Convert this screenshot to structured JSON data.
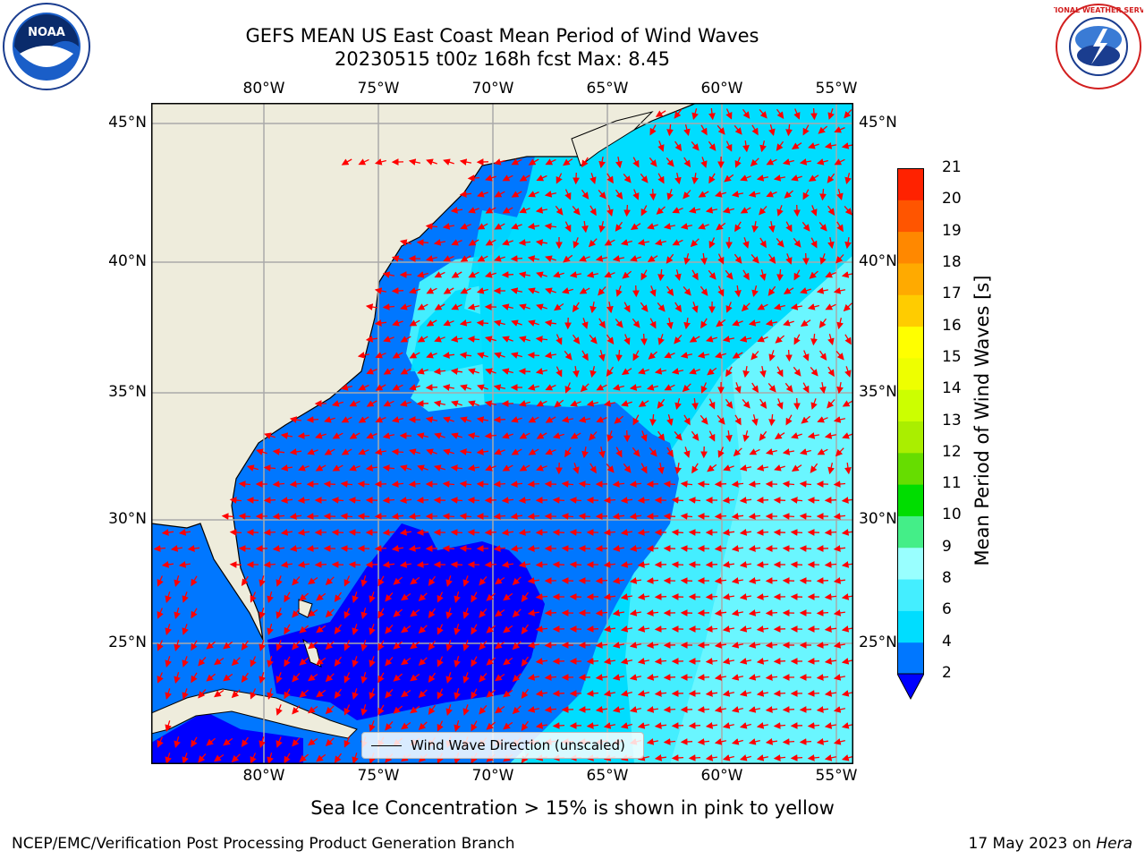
{
  "header": {
    "title_line1": "GEFS MEAN US East Coast Mean Period of Wind Waves",
    "title_line2": "20230515 t00z 168h fcst   Max: 8.45"
  },
  "logos": {
    "left": "NOAA",
    "right": "NATIONAL WEATHER SERVICE"
  },
  "map": {
    "lon_labels": [
      "80°W",
      "75°W",
      "70°W",
      "65°W",
      "60°W",
      "55°W"
    ],
    "lat_labels": [
      "45°N",
      "40°N",
      "35°N",
      "30°N",
      "25°N"
    ],
    "legend_label": "Wind Wave Direction (unscaled)",
    "colors": {
      "land": "#eeecdc",
      "coast": "#000000",
      "grid": "#aaaaaa",
      "arrow": "#ff0000"
    }
  },
  "colorbar": {
    "label": "Mean Period of Wind Waves [s]",
    "ticks": [
      "2",
      "4",
      "6",
      "8",
      "9",
      "10",
      "11",
      "12",
      "13",
      "14",
      "15",
      "16",
      "17",
      "18",
      "19",
      "20",
      "21"
    ],
    "colors": [
      "#0077ff",
      "#00ddff",
      "#44eeff",
      "#99ffff",
      "#44ee88",
      "#00dd00",
      "#66dd00",
      "#aaee00",
      "#ccff00",
      "#eeff00",
      "#ffff00",
      "#ffcc00",
      "#ffaa00",
      "#ff8800",
      "#ff5500",
      "#ff2200"
    ],
    "under_color": "#0000ff"
  },
  "footer": {
    "note": "Sea Ice Concentration > 15% is shown in pink to yellow",
    "left": "NCEP/EMC/Verification Post Processing Product Generation Branch",
    "right_prefix": "17 May 2023 on ",
    "right_host": "Hera"
  }
}
